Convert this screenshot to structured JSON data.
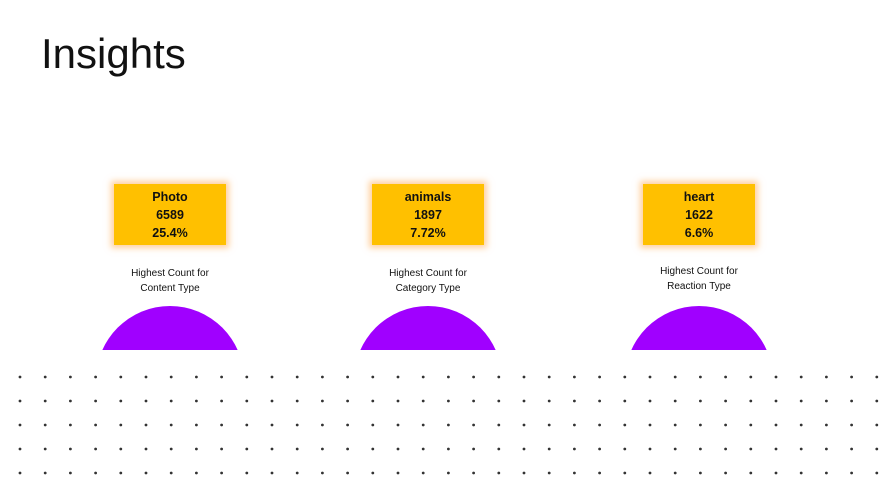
{
  "slide": {
    "title": "Insights"
  },
  "cards": [
    {
      "label": "Photo",
      "count": "6589",
      "percent": "25.4%",
      "caption_line1": "Highest Count for",
      "caption_line2": "Content Type"
    },
    {
      "label": "animals",
      "count": "1897",
      "percent": "7.72%",
      "caption_line1": "Highest Count for",
      "caption_line2": "Category Type"
    },
    {
      "label": "heart",
      "count": "1622",
      "percent": "6.6%",
      "caption_line1": "Highest Count for",
      "caption_line2": "Reaction Type"
    }
  ],
  "colors": {
    "box": "#ffc000",
    "dome": "#a000ff",
    "dots": "#333333",
    "text": "#111111"
  }
}
